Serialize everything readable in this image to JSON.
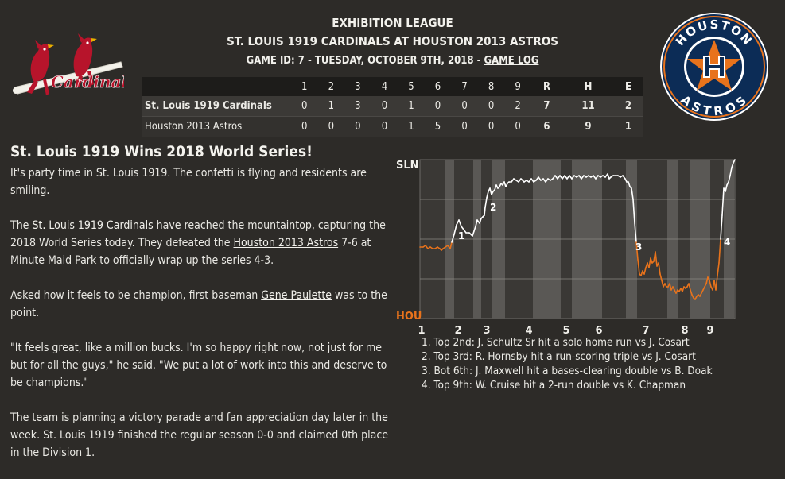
{
  "header": {
    "league": "EXHIBITION LEAGUE",
    "matchup": "ST. LOUIS 1919 CARDINALS AT HOUSTON 2013 ASTROS",
    "game_info": "GAME ID: 7 - TUESDAY, OCTOBER 9TH, 2018 - ",
    "game_log_link": "GAME LOG"
  },
  "logos": {
    "away": {
      "icon": "cardinals-logo",
      "text": "Cardinals"
    },
    "home": {
      "icon": "astros-logo",
      "top_text": "HOUSTON",
      "bottom_text": "ASTROS"
    }
  },
  "box_score": {
    "columns": [
      "1",
      "2",
      "3",
      "4",
      "5",
      "6",
      "7",
      "8",
      "9",
      "R",
      "H",
      "E"
    ],
    "rows": [
      {
        "team": "St. Louis 1919 Cardinals",
        "innings": [
          "0",
          "1",
          "3",
          "0",
          "1",
          "0",
          "0",
          "0",
          "2"
        ],
        "R": "7",
        "H": "11",
        "E": "2"
      },
      {
        "team": "Houston 2013 Astros",
        "innings": [
          "0",
          "0",
          "0",
          "0",
          "1",
          "5",
          "0",
          "0",
          "0"
        ],
        "R": "6",
        "H": "9",
        "E": "1"
      }
    ]
  },
  "article": {
    "headline": "St. Louis 1919 Wins 2018 World Series!",
    "p1": "It's party time in St. Louis 1919. The confetti is flying and residents are smiling.",
    "p2_a": "The ",
    "p2_link1": "St. Louis 1919 Cardinals",
    "p2_b": " have reached the mountaintop, capturing the 2018 World Series today. They defeated the ",
    "p2_link2": "Houston 2013 Astros",
    "p2_c": " 7-6 at Minute Maid Park to officially wrap up the series 4-3.",
    "p3_a": "Asked how it feels to be champion, first baseman ",
    "p3_link": "Gene Paulette",
    "p3_b": " was to the point.",
    "p4": "\"It feels great, like a million bucks. I'm so happy right now, not just for me but for all the guys,\" he said. \"We put a lot of work into this and deserve to be champions.\"",
    "p5": "The team is planning a victory parade and fan appreciation day later in the week. St. Louis 1919 finished the regular season 0-0 and claimed 0th place in the Division 1."
  },
  "chart_data": {
    "type": "line",
    "title": "",
    "top_label": "SLN",
    "bottom_label": "HOU",
    "xlabel": "",
    "ylabel": "",
    "x_ticks": [
      "1",
      "2",
      "3",
      "4",
      "5",
      "6",
      "7",
      "8",
      "9"
    ],
    "ylim": [
      0,
      100
    ],
    "colors": {
      "away": "#ffffff",
      "home": "#e8731c",
      "shade": "#5a5855",
      "plot": "#3a3835"
    },
    "series": [
      {
        "values": [
          [
            0,
            45
          ],
          [
            4,
            45
          ],
          [
            7,
            46
          ],
          [
            10,
            44
          ],
          [
            13,
            45
          ],
          [
            16,
            44
          ],
          [
            19,
            44
          ],
          [
            22,
            45
          ],
          [
            25,
            44
          ],
          [
            27,
            43
          ],
          [
            29,
            44
          ],
          [
            32,
            45
          ],
          [
            35,
            46
          ],
          [
            38,
            44
          ],
          [
            40,
            48
          ],
          [
            43,
            53
          ],
          [
            46,
            59
          ],
          [
            49,
            62
          ],
          [
            52,
            58
          ],
          [
            55,
            56
          ],
          [
            58,
            54
          ],
          [
            62,
            54
          ],
          [
            66,
            52
          ],
          [
            68,
            55
          ],
          [
            70,
            58
          ],
          [
            72,
            62
          ],
          [
            75,
            60
          ],
          [
            77,
            63
          ],
          [
            79,
            64
          ],
          [
            81,
            65
          ],
          [
            82,
            70
          ],
          [
            84,
            76
          ],
          [
            86,
            80
          ],
          [
            88,
            82
          ],
          [
            90,
            78
          ],
          [
            92,
            80
          ],
          [
            94,
            81
          ],
          [
            96,
            84
          ],
          [
            98,
            82
          ],
          [
            100,
            83
          ],
          [
            102,
            85
          ],
          [
            104,
            84
          ],
          [
            106,
            86
          ],
          [
            108,
            83
          ],
          [
            110,
            85
          ],
          [
            112,
            86
          ],
          [
            115,
            86
          ],
          [
            118,
            88
          ],
          [
            121,
            87
          ],
          [
            124,
            86
          ],
          [
            127,
            88
          ],
          [
            131,
            86
          ],
          [
            134,
            87
          ],
          [
            137,
            86
          ],
          [
            140,
            88
          ],
          [
            143,
            86
          ],
          [
            146,
            87
          ],
          [
            149,
            89
          ],
          [
            152,
            87
          ],
          [
            155,
            88
          ],
          [
            158,
            86
          ],
          [
            161,
            88
          ],
          [
            164,
            87
          ],
          [
            167,
            88
          ],
          [
            170,
            90
          ],
          [
            173,
            88
          ],
          [
            176,
            90
          ],
          [
            179,
            88
          ],
          [
            182,
            90
          ],
          [
            185,
            88
          ],
          [
            188,
            90
          ],
          [
            191,
            88
          ],
          [
            194,
            90
          ],
          [
            197,
            89
          ],
          [
            200,
            90
          ],
          [
            203,
            88
          ],
          [
            206,
            90
          ],
          [
            209,
            89
          ],
          [
            212,
            90
          ],
          [
            215,
            89
          ],
          [
            218,
            90
          ],
          [
            221,
            88
          ],
          [
            224,
            90
          ],
          [
            227,
            89
          ],
          [
            230,
            90
          ],
          [
            233,
            89
          ],
          [
            236,
            91
          ],
          [
            238,
            88
          ],
          [
            240,
            89
          ],
          [
            243,
            90
          ],
          [
            246,
            90
          ],
          [
            249,
            90
          ],
          [
            252,
            89
          ],
          [
            255,
            90
          ],
          [
            258,
            88
          ],
          [
            260,
            86
          ],
          [
            262,
            86
          ],
          [
            264,
            83
          ],
          [
            266,
            82
          ],
          [
            268,
            75
          ],
          [
            270,
            60
          ],
          [
            272,
            48
          ],
          [
            274,
            37
          ],
          [
            276,
            28
          ],
          [
            278,
            27
          ],
          [
            280,
            30
          ],
          [
            282,
            28
          ],
          [
            284,
            32
          ],
          [
            286,
            35
          ],
          [
            288,
            32
          ],
          [
            290,
            38
          ],
          [
            292,
            35
          ],
          [
            294,
            36
          ],
          [
            296,
            42
          ],
          [
            298,
            33
          ],
          [
            300,
            35
          ],
          [
            302,
            28
          ],
          [
            304,
            24
          ],
          [
            306,
            20
          ],
          [
            308,
            22
          ],
          [
            310,
            20
          ],
          [
            312,
            20
          ],
          [
            314,
            22
          ],
          [
            316,
            18
          ],
          [
            318,
            20
          ],
          [
            320,
            18
          ],
          [
            322,
            16
          ],
          [
            324,
            18
          ],
          [
            326,
            17
          ],
          [
            328,
            19
          ],
          [
            330,
            17
          ],
          [
            332,
            20
          ],
          [
            334,
            19
          ],
          [
            336,
            20
          ],
          [
            338,
            22
          ],
          [
            340,
            18
          ],
          [
            342,
            15
          ],
          [
            344,
            13
          ],
          [
            346,
            12
          ],
          [
            348,
            14
          ],
          [
            350,
            15
          ],
          [
            352,
            14
          ],
          [
            354,
            16
          ],
          [
            356,
            18
          ],
          [
            358,
            20
          ],
          [
            360,
            22
          ],
          [
            362,
            26
          ],
          [
            364,
            24
          ],
          [
            366,
            20
          ],
          [
            368,
            18
          ],
          [
            370,
            24
          ],
          [
            372,
            18
          ],
          [
            374,
            27
          ],
          [
            376,
            35
          ],
          [
            378,
            50
          ],
          [
            380,
            65
          ],
          [
            382,
            82
          ],
          [
            384,
            80
          ],
          [
            386,
            84
          ],
          [
            388,
            86
          ],
          [
            390,
            90
          ],
          [
            392,
            95
          ],
          [
            394,
            98
          ],
          [
            396,
            100
          ]
        ]
      }
    ],
    "markers": [
      {
        "label": "1",
        "x": 48,
        "y": 50
      },
      {
        "label": "2",
        "x": 88,
        "y": 68
      },
      {
        "label": "3",
        "x": 271,
        "y": 43
      },
      {
        "label": "4",
        "x": 382,
        "y": 46
      }
    ],
    "shaded_bands": [
      [
        31,
        43
      ],
      [
        67,
        77
      ],
      [
        91,
        107
      ],
      [
        142,
        177
      ],
      [
        191,
        229
      ],
      [
        259,
        273
      ],
      [
        311,
        324
      ],
      [
        340,
        365
      ],
      [
        382,
        395
      ]
    ],
    "x_tick_positions": [
      2,
      48,
      84,
      137,
      184,
      225,
      284,
      333,
      365
    ]
  },
  "notes": [
    "1. Top 2nd: J. Schultz Sr hit a solo home run vs J. Cosart",
    "2. Top 3rd: R. Hornsby hit a run-scoring triple vs J. Cosart",
    "3. Bot 6th: J. Maxwell hit a bases-clearing double vs B. Doak",
    "4. Top 9th: W. Cruise hit a 2-run double vs K. Chapman"
  ]
}
